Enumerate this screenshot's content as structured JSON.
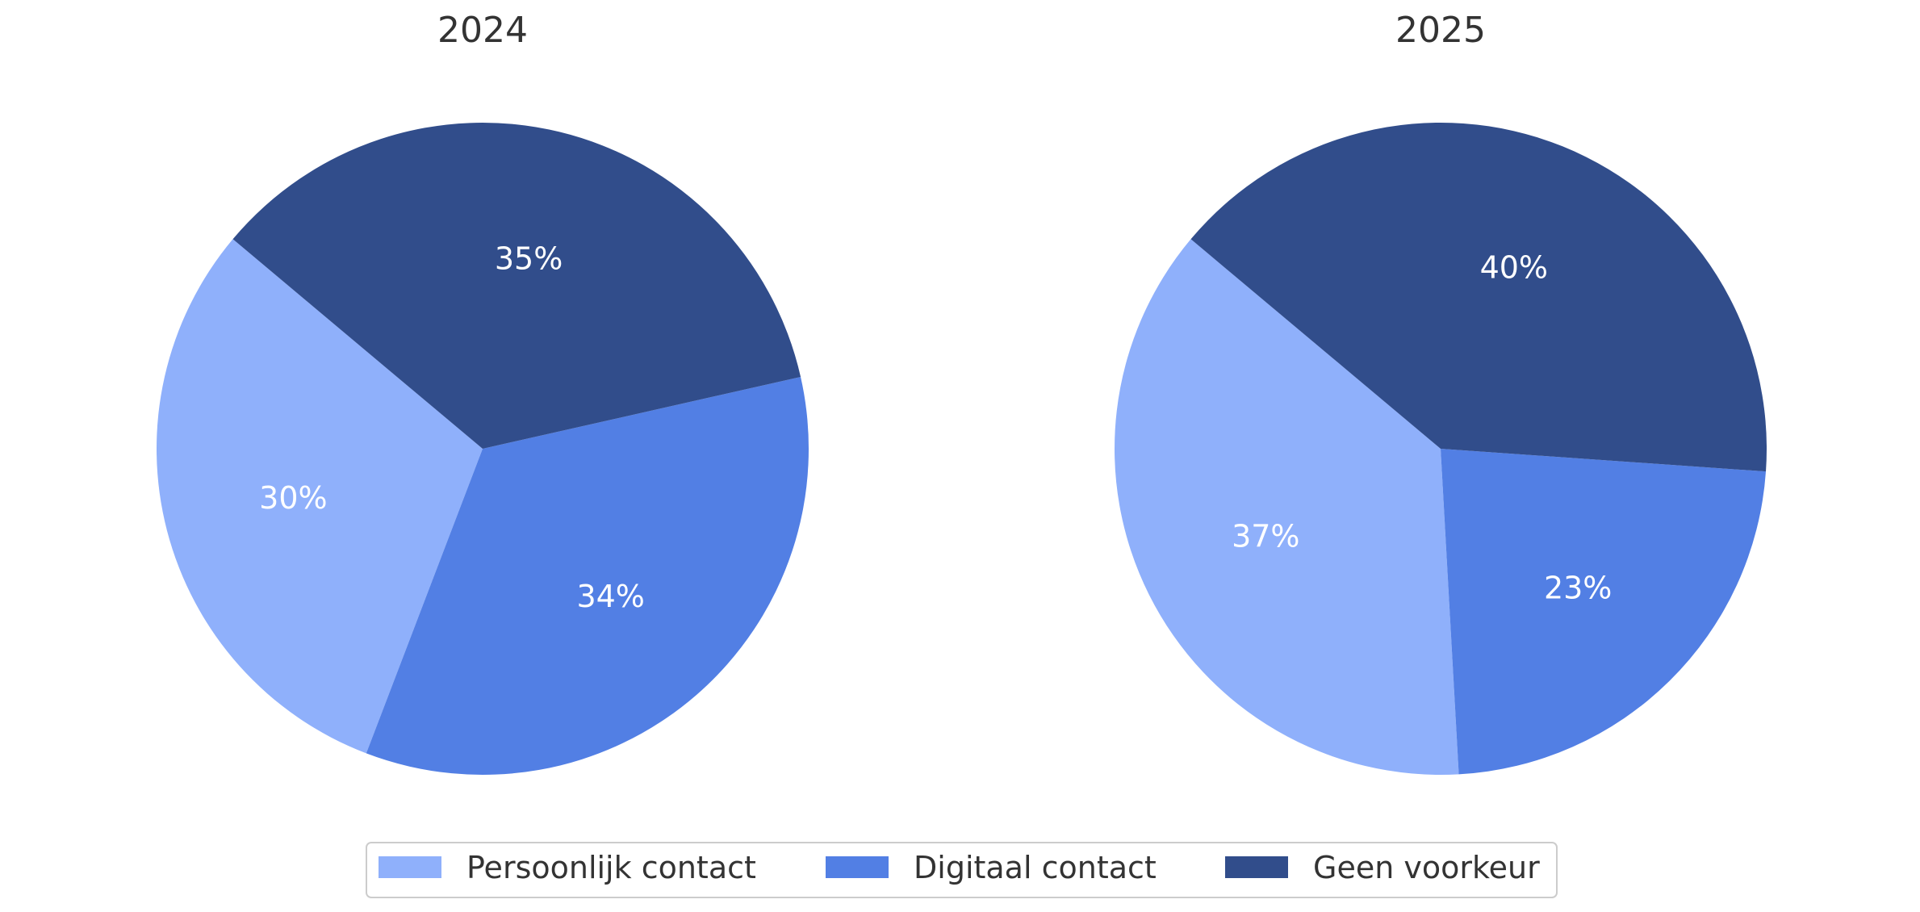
{
  "chart_data": [
    {
      "type": "pie",
      "title": "2024",
      "categories": [
        "Persoonlijk contact",
        "Digitaal contact",
        "Geen voorkeur"
      ],
      "values": [
        30,
        34,
        35
      ],
      "value_labels": [
        "30%",
        "34%",
        "35%"
      ]
    },
    {
      "type": "pie",
      "title": "2025",
      "categories": [
        "Persoonlijk contact",
        "Digitaal contact",
        "Geen voorkeur"
      ],
      "values": [
        37,
        23,
        40
      ],
      "value_labels": [
        "37%",
        "23%",
        "40%"
      ]
    }
  ],
  "legend": {
    "placement": "bottom-center",
    "items": [
      {
        "label": "Persoonlijk contact",
        "color": "#8fb0fb"
      },
      {
        "label": "Digitaal contact",
        "color": "#527fe4"
      },
      {
        "label": "Geen voorkeur",
        "color": "#314d8b"
      }
    ]
  },
  "colors": {
    "Persoonlijk contact": "#8fb0fb",
    "Digitaal contact": "#527fe4",
    "Geen voorkeur": "#314d8b",
    "label_text": "#ffffff",
    "title_text": "#333333",
    "legend_border": "#cccccc"
  }
}
